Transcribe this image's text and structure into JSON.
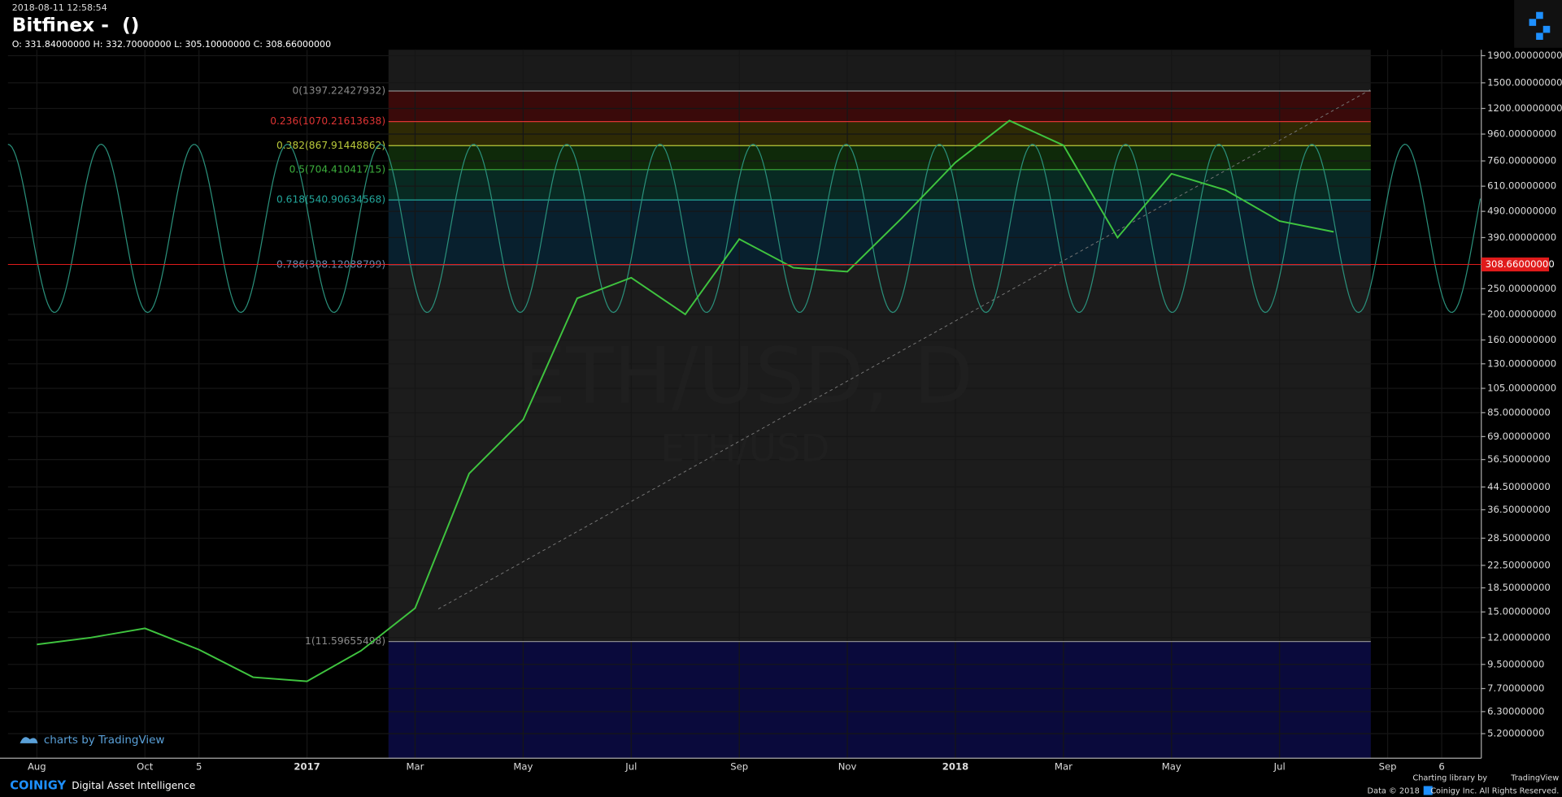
{
  "header": {
    "timestamp": "2018-08-11 12:58:54",
    "title": "Bitfinex -  ()",
    "ohlc": "O: 331.84000000 H: 332.70000000 L: 305.10000000 C: 308.66000000"
  },
  "chart_data": {
    "type": "line",
    "title": "ETH/USD, D",
    "subtitle": "ETH/USD",
    "categories": [
      "Aug",
      null,
      "Oct",
      "5",
      null,
      "2017",
      null,
      "Mar",
      null,
      "May",
      null,
      "Jul",
      null,
      "Sep",
      null,
      "Nov",
      null,
      "2018",
      null,
      "Mar",
      null,
      "May",
      null,
      "Jul",
      null,
      "Sep",
      "6"
    ],
    "values": [
      11.3,
      12,
      13,
      10.8,
      8.5,
      8.2,
      10.7,
      15.5,
      50,
      80,
      230,
      275,
      200,
      385,
      300,
      290,
      460,
      750,
      1080,
      870,
      390,
      680,
      590,
      450,
      410,
      null,
      null
    ],
    "color": "#3fc43f",
    "log_scale": true,
    "grid": true,
    "ylim": [
      4.2,
      2000
    ],
    "yticks": [
      {
        "value": 1900,
        "label": "1900.00000000"
      },
      {
        "value": 1500,
        "label": "1500.00000000"
      },
      {
        "value": 1200,
        "label": "1200.00000000"
      },
      {
        "value": 960,
        "label": "960.00000000"
      },
      {
        "value": 760,
        "label": "760.00000000"
      },
      {
        "value": 610,
        "label": "610.00000000"
      },
      {
        "value": 490,
        "label": "490.00000000"
      },
      {
        "value": 390,
        "label": "390.00000000"
      },
      {
        "value": 250,
        "label": "250.00000000"
      },
      {
        "value": 200,
        "label": "200.00000000"
      },
      {
        "value": 160,
        "label": "160.00000000"
      },
      {
        "value": 130,
        "label": "130.00000000"
      },
      {
        "value": 105,
        "label": "105.00000000"
      },
      {
        "value": 85,
        "label": "85.00000000"
      },
      {
        "value": 69,
        "label": "69.00000000"
      },
      {
        "value": 56.5,
        "label": "56.50000000"
      },
      {
        "value": 44.5,
        "label": "44.50000000"
      },
      {
        "value": 36.5,
        "label": "36.50000000"
      },
      {
        "value": 28.5,
        "label": "28.50000000"
      },
      {
        "value": 22.5,
        "label": "22.50000000"
      },
      {
        "value": 18.5,
        "label": "18.50000000"
      },
      {
        "value": 15,
        "label": "15.00000000"
      },
      {
        "value": 12,
        "label": "12.00000000"
      },
      {
        "value": 9.5,
        "label": "9.50000000"
      },
      {
        "value": 7.7,
        "label": "7.70000000"
      },
      {
        "value": 6.3,
        "label": "6.30000000"
      },
      {
        "value": 5.2,
        "label": "5.20000000"
      }
    ],
    "price_label": {
      "value": 308.66,
      "label": "308.66000000",
      "color": "#e01b1b"
    },
    "fib_levels": [
      {
        "value": 1397.22427932,
        "label": "0(1397.22427932)",
        "color": "#8a8a8a",
        "fill": "#3a0a0a"
      },
      {
        "value": 1070.21613638,
        "label": "0.236(1070.21613638)",
        "color": "#d33",
        "fill": "#2e2a05"
      },
      {
        "value": 867.91448862,
        "label": "0.382(867.91448862)",
        "color": "#b9c93a",
        "fill": "#0f2a0a"
      },
      {
        "value": 704.41041715,
        "label": "0.5(704.41041715)",
        "color": "#3cae3c",
        "fill": "#082a22"
      },
      {
        "value": 540.90634568,
        "label": "0.618(540.90634568)",
        "color": "#22a59a",
        "fill": "#08202e"
      },
      {
        "value": 308.12088799,
        "label": "0.786(308.12088799)",
        "color": "#6a8cae",
        "fill": "#1c1c1c"
      },
      {
        "value": 11.59655498,
        "label": "1(11.59655498)",
        "color": "#8a8a8a",
        "fill": "#0a0a3c"
      }
    ]
  },
  "footer": {
    "tv_badge": "charts by TradingView",
    "brand": "COINIGY",
    "tagline": "Digital Asset Intelligence",
    "credit": "Charting library by",
    "credit_brand": "TradingView",
    "copyright": "Data © 2018",
    "rights": "Coinigy Inc. All Rights Reserved."
  }
}
